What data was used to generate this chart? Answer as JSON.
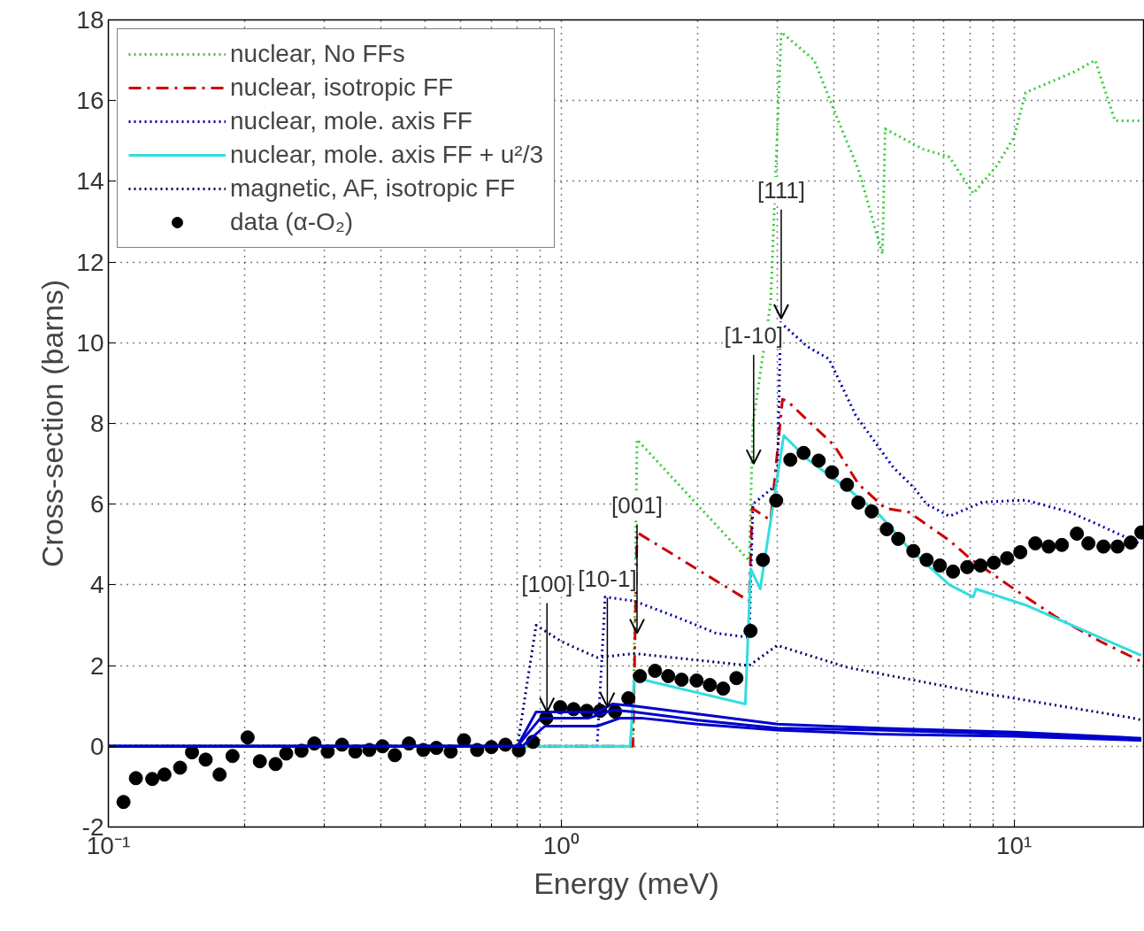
{
  "chart_data": {
    "type": "line",
    "xlabel": "Energy (meV)",
    "ylabel": "Cross-section (barns)",
    "log": "x",
    "grid": true,
    "legend": "top left",
    "xlim": [
      0.1,
      19.4
    ],
    "ylim": [
      -2,
      18
    ],
    "xticks": [
      {
        "value": 0.1,
        "label": "10⁻¹"
      },
      {
        "value": 0.2,
        "label": null
      },
      {
        "value": 0.3,
        "label": null
      },
      {
        "value": 0.4,
        "label": null
      },
      {
        "value": 0.5,
        "label": null
      },
      {
        "value": 0.6,
        "label": null
      },
      {
        "value": 0.7,
        "label": null
      },
      {
        "value": 0.8,
        "label": null
      },
      {
        "value": 0.9,
        "label": null
      },
      {
        "value": 1,
        "label": "10⁰"
      },
      {
        "value": 2,
        "label": null
      },
      {
        "value": 3,
        "label": null
      },
      {
        "value": 4,
        "label": null
      },
      {
        "value": 5,
        "label": null
      },
      {
        "value": 6,
        "label": null
      },
      {
        "value": 7,
        "label": null
      },
      {
        "value": 8,
        "label": null
      },
      {
        "value": 9,
        "label": null
      },
      {
        "value": 10,
        "label": "10¹"
      }
    ],
    "yticks": [
      -2,
      0,
      2,
      4,
      6,
      8,
      10,
      12,
      14,
      16,
      18
    ],
    "series": [
      {
        "name": "nuclear, No FFs",
        "line_style": "dotted",
        "color": "#33cc33",
        "x": [
          0.1,
          1.44,
          1.47,
          2.6,
          2.65,
          2.9,
          3.06,
          3.62,
          4.09,
          4.53,
          5.12,
          5.19,
          6.29,
          7.2,
          8.13,
          9.18,
          10.0,
          10.6,
          13.5,
          15.1,
          16.7,
          19.1
        ],
        "values": [
          0,
          0,
          7.6,
          4.6,
          8.0,
          11.0,
          17.7,
          17.0,
          15.5,
          14.3,
          12.2,
          15.3,
          14.8,
          14.6,
          13.7,
          14.4,
          15.1,
          16.2,
          16.7,
          17.0,
          15.5,
          15.5
        ]
      },
      {
        "name": "nuclear, isotropic FF",
        "line_style": "dashed",
        "color": "#cc0000",
        "x": [
          0.1,
          1.44,
          1.47,
          2.6,
          2.64,
          2.9,
          3.08,
          3.16,
          4.01,
          4.53,
          5.19,
          5.86,
          7.2,
          8.0,
          10.3,
          12.4,
          15.5,
          19.1
        ],
        "values": [
          0,
          0,
          5.3,
          3.6,
          5.9,
          5.6,
          8.6,
          8.55,
          7.45,
          6.5,
          5.9,
          5.8,
          5.1,
          4.65,
          3.8,
          3.2,
          2.6,
          2.1
        ]
      },
      {
        "name": "nuclear, mole. axis FF",
        "line_style": "dotted",
        "color": "#0000aa",
        "x": [
          0.1,
          1.2,
          1.25,
          1.45,
          1.8,
          2.2,
          2.6,
          2.65,
          3.0,
          3.05,
          3.5,
          3.9,
          4.47,
          5.42,
          6.02,
          6.41,
          7.2,
          8.5,
          10.6,
          13.3,
          15.3,
          19.1
        ],
        "values": [
          0,
          0,
          3.7,
          3.6,
          3.2,
          2.8,
          2.7,
          6.0,
          6.5,
          10.5,
          9.9,
          9.6,
          8.2,
          6.9,
          6.4,
          6.0,
          5.7,
          6.05,
          6.1,
          5.8,
          5.5,
          5.0
        ]
      },
      {
        "name": "nuclear, mole. axis FF + u²/3",
        "line_style": "solid",
        "color": "#33dddd",
        "x": [
          0.1,
          1.42,
          1.45,
          2.55,
          2.62,
          2.75,
          3.1,
          3.51,
          4.33,
          5.03,
          5.86,
          7.2,
          8.13,
          8.24,
          10.6,
          14.4,
          19.1
        ],
        "values": [
          0,
          0,
          1.7,
          1.05,
          4.4,
          3.9,
          7.7,
          7.1,
          6.35,
          5.75,
          4.9,
          4.0,
          3.7,
          3.9,
          3.5,
          2.85,
          2.25
        ]
      },
      {
        "name": "magnetic, AF, isotropic FF",
        "line_style": "dotted",
        "color": "#000066",
        "x": [
          0.1,
          0.8,
          0.88,
          1.0,
          1.2,
          1.45,
          2.6,
          3.0,
          4.3,
          8.1,
          18.3,
          19.1
        ],
        "values": [
          0,
          0,
          3.0,
          2.6,
          2.2,
          2.3,
          2.0,
          2.5,
          1.95,
          1.36,
          0.7,
          0.65
        ]
      },
      {
        "name": "data (α-O₂)",
        "type": "scatter",
        "marker": "circle",
        "color": "#000000",
        "x": [
          0.108,
          0.115,
          0.125,
          0.133,
          0.144,
          0.153,
          0.164,
          0.176,
          0.188,
          0.203,
          0.216,
          0.234,
          0.247,
          0.267,
          0.285,
          0.305,
          0.328,
          0.351,
          0.377,
          0.403,
          0.429,
          0.461,
          0.496,
          0.53,
          0.57,
          0.61,
          0.652,
          0.701,
          0.753,
          0.806,
          0.866,
          0.927,
          0.995,
          1.065,
          1.139,
          1.219,
          1.315,
          1.407,
          1.492,
          1.611,
          1.723,
          1.844,
          1.99,
          2.129,
          2.278,
          2.437,
          2.618,
          2.788,
          2.983,
          3.205,
          3.429,
          3.702,
          3.961,
          4.275,
          4.531,
          4.848,
          5.233,
          5.548,
          5.99,
          6.41,
          6.855,
          7.33,
          7.88,
          8.43,
          9.02,
          9.65,
          10.32,
          11.14,
          11.92,
          12.75,
          13.76,
          14.59,
          15.75,
          16.92,
          18.1,
          19.1
        ],
        "values": [
          -1.38,
          -0.79,
          -0.81,
          -0.7,
          -0.53,
          -0.15,
          -0.33,
          -0.7,
          -0.24,
          0.22,
          -0.37,
          -0.44,
          -0.18,
          -0.11,
          0.07,
          -0.13,
          0.04,
          -0.13,
          -0.09,
          0.0,
          -0.22,
          0.07,
          -0.09,
          -0.04,
          -0.13,
          0.15,
          -0.09,
          -0.02,
          0.04,
          -0.1,
          0.11,
          0.7,
          0.97,
          0.92,
          0.88,
          0.88,
          0.86,
          1.19,
          1.74,
          1.87,
          1.74,
          1.65,
          1.63,
          1.52,
          1.43,
          1.69,
          2.86,
          4.62,
          6.09,
          7.1,
          7.27,
          7.08,
          6.79,
          6.48,
          6.04,
          5.82,
          5.38,
          5.14,
          4.84,
          4.62,
          4.48,
          4.33,
          4.44,
          4.48,
          4.55,
          4.66,
          4.81,
          5.03,
          4.95,
          4.99,
          5.27,
          5.03,
          4.95,
          4.95,
          5.05,
          5.3
        ]
      },
      {
        "line_style": "solid",
        "color": "#0000cc",
        "x": [
          0.1,
          0.8,
          0.88,
          1.2,
          1.3,
          1.45,
          2.0,
          3.0,
          5.0,
          10.0,
          19.1
        ],
        "values": [
          0,
          0,
          0.85,
          0.85,
          1.05,
          1.0,
          0.8,
          0.55,
          0.45,
          0.35,
          0.2
        ]
      },
      {
        "line_style": "solid",
        "color": "#0000cc",
        "x": [
          0.1,
          0.8,
          0.9,
          1.15,
          1.3,
          1.45,
          2.0,
          3.0,
          5.0,
          10.0,
          19.1
        ],
        "values": [
          0,
          0,
          0.7,
          0.7,
          0.9,
          0.85,
          0.65,
          0.45,
          0.4,
          0.3,
          0.15
        ]
      },
      {
        "line_style": "solid",
        "color": "#0000cc",
        "x": [
          0.1,
          0.82,
          0.92,
          1.2,
          1.35,
          1.5,
          2.0,
          3.0,
          5.0,
          10.0,
          19.1
        ],
        "values": [
          0,
          0,
          0.5,
          0.5,
          0.7,
          0.7,
          0.55,
          0.4,
          0.3,
          0.25,
          0.15
        ]
      }
    ],
    "annotations": [
      {
        "text": "[100]",
        "x": 0.93,
        "y": 0.85
      },
      {
        "text": "[10-1]",
        "x": 1.264,
        "y": 0.98
      },
      {
        "text": "[001]",
        "x": 1.47,
        "y": 2.8
      },
      {
        "text": "[1-10]",
        "x": 2.66,
        "y": 7.0
      },
      {
        "text": "[111]",
        "x": 3.06,
        "y": 10.6
      }
    ]
  }
}
